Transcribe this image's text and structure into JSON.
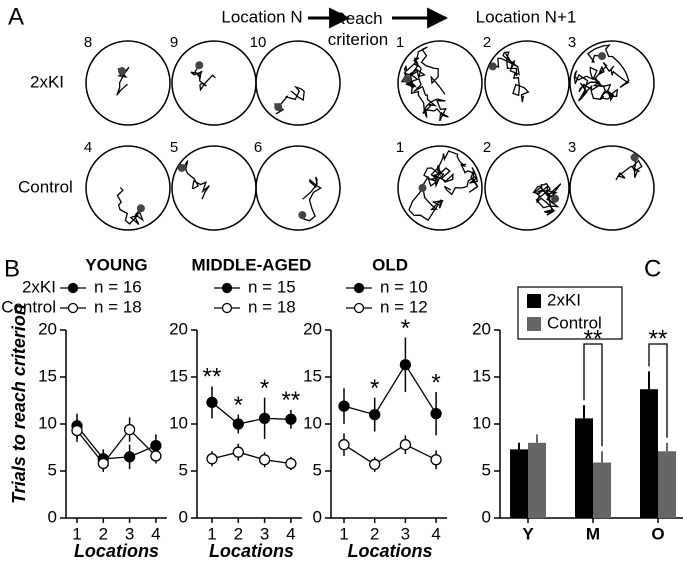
{
  "panel_a": {
    "label": "A",
    "headers": [
      "Location N",
      "Reach criterion",
      "Location N+1"
    ],
    "rows": [
      {
        "label": "2xKI",
        "trials": [
          "8",
          "9",
          "10",
          "1",
          "2",
          "3"
        ]
      },
      {
        "label": "Control",
        "trials": [
          "4",
          "5",
          "6",
          "1",
          "2",
          "3"
        ]
      }
    ]
  },
  "chart_data": [
    {
      "type": "line",
      "panel_label": "B",
      "title": "YOUNG",
      "ylabel": "Trials to reach criterion",
      "xlabel": "Locations",
      "categories": [
        "1",
        "2",
        "3",
        "4"
      ],
      "ylim": [
        0,
        20
      ],
      "yticks": [
        0,
        5,
        10,
        15,
        20
      ],
      "series": [
        {
          "name": "2xKI",
          "n_label": "n = 16",
          "color": "#000000",
          "values": [
            9.8,
            6.3,
            6.5,
            7.7
          ],
          "errors": [
            1.3,
            1.0,
            1.3,
            1.2
          ]
        },
        {
          "name": "Control",
          "n_label": "n = 18",
          "color": "#ffffff",
          "values": [
            9.3,
            5.8,
            9.4,
            6.6
          ],
          "errors": [
            1.2,
            0.9,
            1.3,
            0.8
          ]
        }
      ]
    },
    {
      "type": "line",
      "title": "MIDDLE-AGED",
      "xlabel": "Locations",
      "categories": [
        "1",
        "2",
        "3",
        "4"
      ],
      "ylim": [
        0,
        20
      ],
      "yticks": [
        0,
        5,
        10,
        15,
        20
      ],
      "annotations": [
        "**",
        "*",
        "*",
        "**"
      ],
      "series": [
        {
          "n_label": "n = 15",
          "color": "#000000",
          "values": [
            12.3,
            10.0,
            10.6,
            10.5
          ],
          "errors": [
            1.7,
            1.0,
            2.2,
            1.0
          ]
        },
        {
          "n_label": "n = 18",
          "color": "#ffffff",
          "values": [
            6.3,
            7.0,
            6.2,
            5.8
          ],
          "errors": [
            0.8,
            0.9,
            0.8,
            0.7
          ]
        }
      ]
    },
    {
      "type": "line",
      "title": "OLD",
      "xlabel": "Locations",
      "categories": [
        "1",
        "2",
        "3",
        "4"
      ],
      "ylim": [
        0,
        20
      ],
      "yticks": [
        0,
        5,
        10,
        15,
        20
      ],
      "annotations": [
        null,
        "*",
        "*",
        "*"
      ],
      "series": [
        {
          "n_label": "n = 10",
          "color": "#000000",
          "values": [
            11.9,
            11.0,
            16.3,
            11.1
          ],
          "errors": [
            1.9,
            1.8,
            2.9,
            2.3
          ]
        },
        {
          "n_label": "n = 12",
          "color": "#ffffff",
          "values": [
            7.8,
            5.7,
            7.8,
            6.2
          ],
          "errors": [
            1.2,
            0.8,
            1.0,
            1.0
          ]
        }
      ]
    },
    {
      "type": "bar",
      "panel_label": "C",
      "categories": [
        "Y",
        "M",
        "O"
      ],
      "ylim": [
        0,
        20
      ],
      "yticks": [
        0,
        5,
        10,
        15,
        20
      ],
      "annotations": [
        null,
        "**",
        "**"
      ],
      "series": [
        {
          "name": "2xKI",
          "color": "#000000",
          "values": [
            7.3,
            10.6,
            13.7
          ],
          "errors": [
            0.7,
            1.4,
            1.9
          ]
        },
        {
          "name": "Control",
          "color": "#666666",
          "values": [
            8.0,
            5.9,
            7.1
          ],
          "errors": [
            0.9,
            1.2,
            0.9
          ]
        }
      ]
    }
  ]
}
